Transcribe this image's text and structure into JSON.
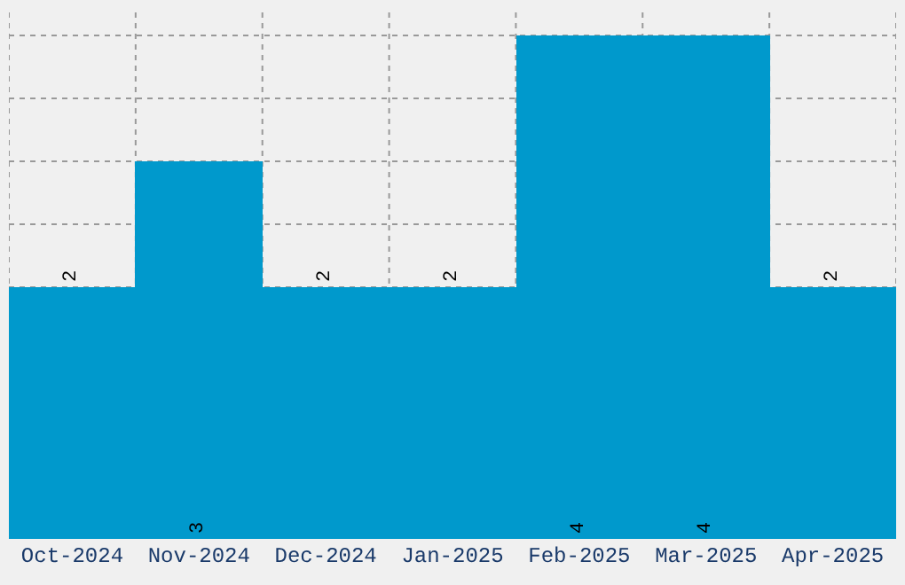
{
  "chart_data": {
    "type": "bar",
    "categories": [
      "Oct-2024",
      "Nov-2024",
      "Dec-2024",
      "Jan-2025",
      "Feb-2025",
      "Mar-2025",
      "Apr-2025"
    ],
    "values": [
      2,
      3,
      2,
      2,
      4,
      4,
      2
    ],
    "color": "#0099cc",
    "data_labels": true,
    "grid": true,
    "tick_labels": "x"
  }
}
